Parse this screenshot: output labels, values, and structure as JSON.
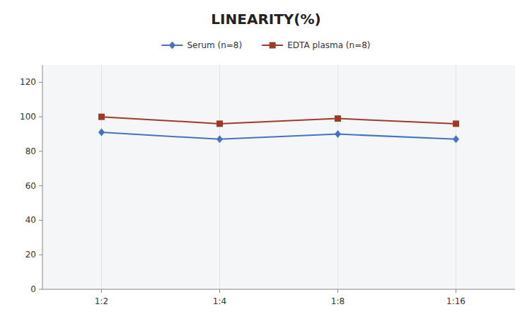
{
  "chart_data": {
    "type": "line",
    "title": "LINEARITY(%)",
    "categories": [
      "1:2",
      "1:4",
      "1:8",
      "1:16"
    ],
    "series": [
      {
        "name": "Serum (n=8)",
        "color": "#4472C4",
        "marker": "diamond",
        "values": [
          91,
          87,
          90,
          87
        ]
      },
      {
        "name": "EDTA plasma (n=8)",
        "color": "#9E3B26",
        "marker": "square",
        "values": [
          100,
          96,
          99,
          96
        ]
      }
    ],
    "ylim": [
      0,
      130
    ],
    "yticks": [
      0,
      20,
      40,
      60,
      80,
      100,
      120
    ],
    "grid": true,
    "legend": "top"
  }
}
